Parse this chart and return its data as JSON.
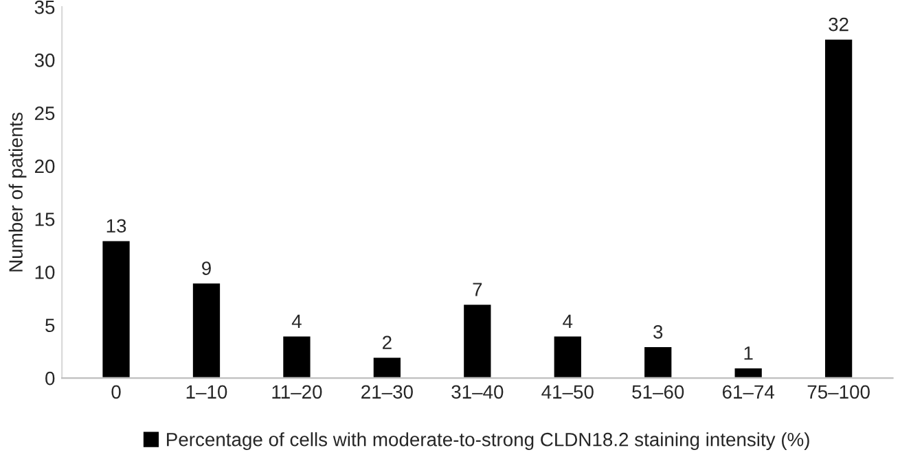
{
  "chart_data": {
    "type": "bar",
    "ylabel": "Number of patients",
    "categories": [
      "0",
      "1–10",
      "11–20",
      "21–30",
      "31–40",
      "41–50",
      "51–60",
      "61–74",
      "75–100"
    ],
    "series": [
      {
        "name": "Percentage of cells with moderate-to-strong CLDN18.2 staining intensity (%)",
        "color": "#000000",
        "values": [
          13,
          9,
          4,
          2,
          7,
          4,
          3,
          1,
          32
        ]
      }
    ],
    "ylim": [
      0,
      35
    ],
    "yticks": [
      0,
      5,
      10,
      15,
      20,
      25,
      30,
      35
    ],
    "data_labels": true,
    "grid": false,
    "legend": "bottom"
  }
}
